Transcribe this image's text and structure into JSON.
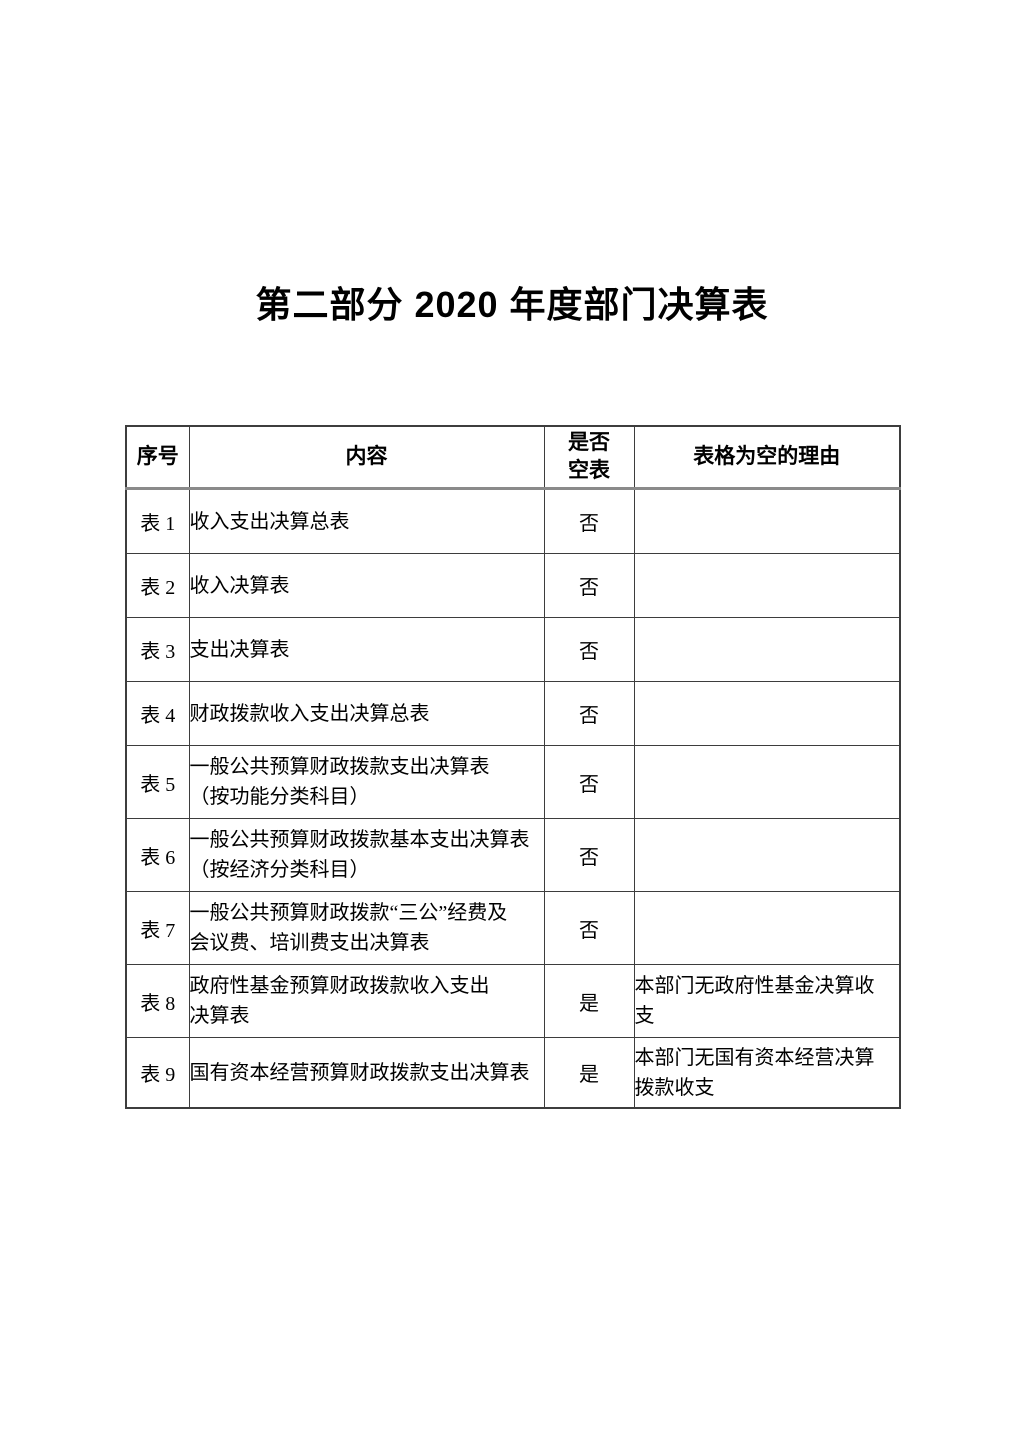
{
  "page": {
    "title": "第二部分 2020 年度部门决算表"
  },
  "table": {
    "headers": {
      "no": "序号",
      "content": "内容",
      "empty": "是否\n空表",
      "reason": "表格为空的理由"
    },
    "rows": [
      {
        "no": "表 1",
        "content": "收入支出决算总表",
        "empty": "否",
        "reason": ""
      },
      {
        "no": "表 2",
        "content": "收入决算表",
        "empty": "否",
        "reason": ""
      },
      {
        "no": "表 3",
        "content": "支出决算表",
        "empty": "否",
        "reason": ""
      },
      {
        "no": "表 4",
        "content": "财政拨款收入支出决算总表",
        "empty": "否",
        "reason": ""
      },
      {
        "no": "表 5",
        "content": "一般公共预算财政拨款支出决算表\n（按功能分类科目）",
        "empty": "否",
        "reason": ""
      },
      {
        "no": "表 6",
        "content": "一般公共预算财政拨款基本支出决算表\n（按经济分类科目）",
        "empty": "否",
        "reason": ""
      },
      {
        "no": "表 7",
        "content": "一般公共预算财政拨款“三公”经费及\n会议费、培训费支出决算表",
        "empty": "否",
        "reason": ""
      },
      {
        "no": "表 8",
        "content": "政府性基金预算财政拨款收入支出\n决算表",
        "empty": "是",
        "reason": "本部门无政府性基金决算收\n支"
      },
      {
        "no": "表 9",
        "content": "国有资本经营预算财政拨款支出决算表",
        "empty": "是",
        "reason": "本部门无国有资本经营决算\n拨款收支"
      }
    ]
  },
  "colors": {
    "text": "#000000",
    "border": "#3d3d3d",
    "header_rule": "#8a8a8a",
    "background": "#ffffff"
  }
}
